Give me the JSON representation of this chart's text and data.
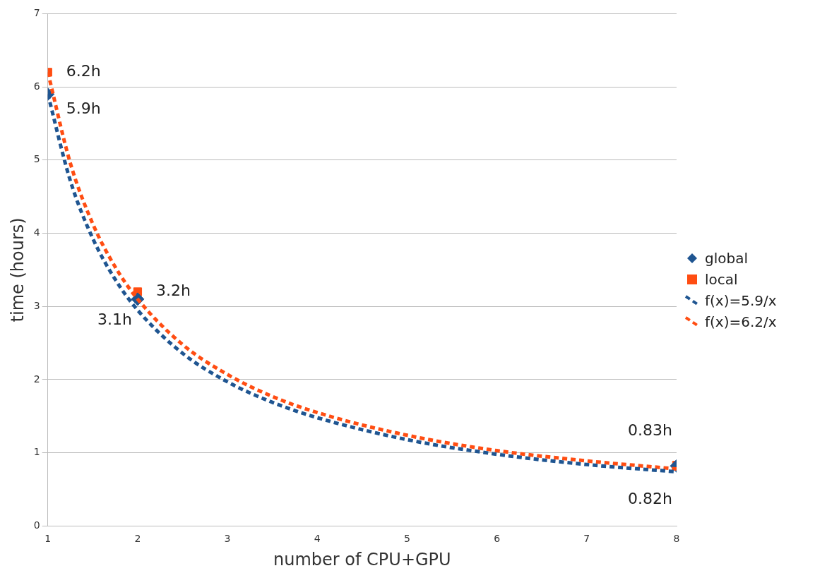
{
  "chart_data": {
    "type": "scatter",
    "xlabel": "number of CPU+GPU",
    "ylabel": "time (hours)",
    "xlim": [
      1,
      8
    ],
    "xticks": [
      1,
      2,
      3,
      4,
      5,
      6,
      7,
      8
    ],
    "ylim": [
      0,
      7
    ],
    "yticks": [
      0,
      1,
      2,
      3,
      4,
      5,
      6,
      7
    ],
    "grid": "y",
    "legend": "right",
    "series": [
      {
        "name": "global",
        "type": "scatter",
        "marker": "diamond",
        "color": "#1f5591",
        "x": [
          1,
          2,
          8
        ],
        "values": [
          5.9,
          3.1,
          0.82
        ],
        "value_labels": [
          "5.9h",
          "3.1h",
          "0.82h"
        ]
      },
      {
        "name": "local",
        "type": "scatter",
        "marker": "square",
        "color": "#ff4d12",
        "x": [
          1,
          2,
          8
        ],
        "values": [
          6.2,
          3.2,
          0.83
        ],
        "value_labels": [
          "6.2h",
          "3.2h",
          "0.83h"
        ]
      },
      {
        "name": "f(x)=5.9/x",
        "type": "line",
        "line_style": "dashed",
        "marker": "none",
        "color": "#1f5591",
        "x": [
          1,
          1.25,
          1.5,
          1.75,
          2,
          2.5,
          3,
          3.5,
          4,
          5,
          6,
          7,
          8
        ],
        "values": [
          5.9,
          4.72,
          3.93,
          3.37,
          2.95,
          2.36,
          1.97,
          1.69,
          1.48,
          1.18,
          0.98,
          0.84,
          0.74
        ]
      },
      {
        "name": "f(x)=6.2/x",
        "type": "line",
        "line_style": "dashed",
        "marker": "none",
        "color": "#ff4d12",
        "x": [
          1,
          1.25,
          1.5,
          1.75,
          2,
          2.5,
          3,
          3.5,
          4,
          5,
          6,
          7,
          8
        ],
        "values": [
          6.2,
          4.96,
          4.13,
          3.54,
          3.1,
          2.48,
          2.07,
          1.77,
          1.55,
          1.24,
          1.03,
          0.89,
          0.78
        ]
      }
    ]
  }
}
